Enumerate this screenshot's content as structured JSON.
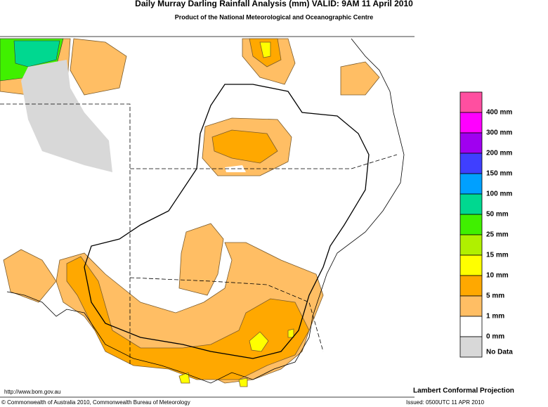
{
  "header": {
    "title": "Daily Murray Darling Rainfall Analysis (mm)  VALID: 9AM 11 April 2010",
    "subtitle": "Product of the National Meteorological and Oceanographic Centre"
  },
  "legend": {
    "colors": [
      "#ff4fa0",
      "#ff00ff",
      "#a000f0",
      "#3f3fff",
      "#00a0ff",
      "#00d890",
      "#40f000",
      "#b0f000",
      "#ffff00",
      "#ffa800",
      "#ffbe64",
      "#ffffff",
      "#d8d8d8"
    ],
    "labels": [
      "400 mm",
      "300 mm",
      "200 mm",
      "150 mm",
      "100 mm",
      "50 mm",
      "25 mm",
      "15 mm",
      "10 mm",
      "5 mm",
      "1 mm",
      "0 mm",
      "No Data"
    ]
  },
  "footer": {
    "url": "http://www.bom.gov.au",
    "copyright": "© Commonwealth of Australia 2010, Commonwealth Bureau of Meteorology",
    "projection": "Lambert Conformal Projection",
    "issued": "Issued: 0500UTC 11 APR 2010"
  }
}
